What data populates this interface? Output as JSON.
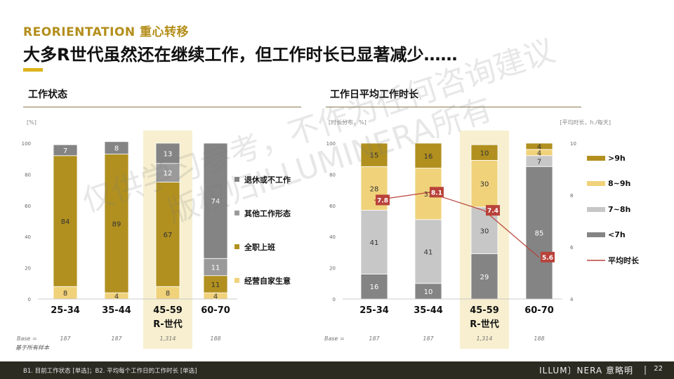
{
  "header": {
    "kicker": "REORIENTATION 重心转移",
    "title": "大多R世代虽然还在继续工作，但工作时长已显著减少……"
  },
  "watermark": {
    "line1": "仅供学习参考，不作为任何咨询建议",
    "line2": "版权归ILLUMINERA所有"
  },
  "colors": {
    "dark_gold": "#b1901f",
    "light_gold": "#f0d27a",
    "light_gray": "#c7c7c7",
    "dark_gray": "#848484",
    "gray_mid": "#9a9a9a",
    "highlight": "#f7efcf",
    "line_red": "#b9423a"
  },
  "chart_data": [
    {
      "type": "bar",
      "stacked": true,
      "title": "工作状态",
      "y_unit": "[%]",
      "ylim": [
        0,
        100
      ],
      "yticks": [
        0,
        20,
        40,
        60,
        80,
        100
      ],
      "categories": [
        "25-34",
        "35-44",
        "45-59",
        "60-70"
      ],
      "category_sublabels": [
        "",
        "",
        "R-世代",
        ""
      ],
      "highlight_category": "45-59",
      "base_label": "Base =",
      "base": [
        "187",
        "187",
        "1,314",
        "188"
      ],
      "legend_position": "right",
      "series": [
        {
          "name": "经营自家生意",
          "color": "#f0d27a",
          "values": [
            8,
            4,
            8,
            4
          ]
        },
        {
          "name": "全职上班",
          "color": "#b1901f",
          "values": [
            84,
            89,
            67,
            11
          ]
        },
        {
          "name": "其他工作形态",
          "color": "#9a9a9a",
          "values": [
            0,
            0,
            12,
            11
          ]
        },
        {
          "name": "退休或不工作",
          "color": "#848484",
          "values": [
            7,
            8,
            13,
            74
          ]
        }
      ]
    },
    {
      "type": "bar",
      "stacked": true,
      "title": "工作日平均工作时长",
      "y_unit": "[时长分布，%]",
      "y2_unit": "[平均时长，h./每天]",
      "ylim": [
        0,
        100
      ],
      "yticks": [
        0,
        20,
        40,
        60,
        80,
        100
      ],
      "y2lim": [
        4,
        10
      ],
      "y2ticks": [
        4,
        6,
        8,
        10
      ],
      "categories": [
        "25-34",
        "35-44",
        "45-59",
        "60-70"
      ],
      "category_sublabels": [
        "",
        "",
        "R-世代",
        ""
      ],
      "highlight_category": "45-59",
      "base_label": "Base =",
      "base": [
        "187",
        "187",
        "1,314",
        "188"
      ],
      "legend_position": "right",
      "series": [
        {
          "name": "<7h",
          "color": "#848484",
          "values": [
            16,
            10,
            29,
            85
          ]
        },
        {
          "name": "7~8h",
          "color": "#c7c7c7",
          "values": [
            41,
            41,
            30,
            7
          ]
        },
        {
          "name": "8~9h",
          "color": "#f0d27a",
          "values": [
            28,
            33,
            30,
            4
          ]
        },
        {
          "name": ">9h",
          "color": "#b1901f",
          "values": [
            15,
            16,
            10,
            4
          ]
        }
      ],
      "line_series": {
        "name": "平均时长",
        "color": "#b9423a",
        "values": [
          7.8,
          8.1,
          7.4,
          5.6
        ]
      }
    }
  ],
  "footnote": "基于所有样本",
  "footer": {
    "note": "B1. 目前工作状态 [单选]；B2. 平均每个工作日的工作时长 [单选]",
    "brand": "ILLUM〕NERA 意略明",
    "page": "22"
  }
}
